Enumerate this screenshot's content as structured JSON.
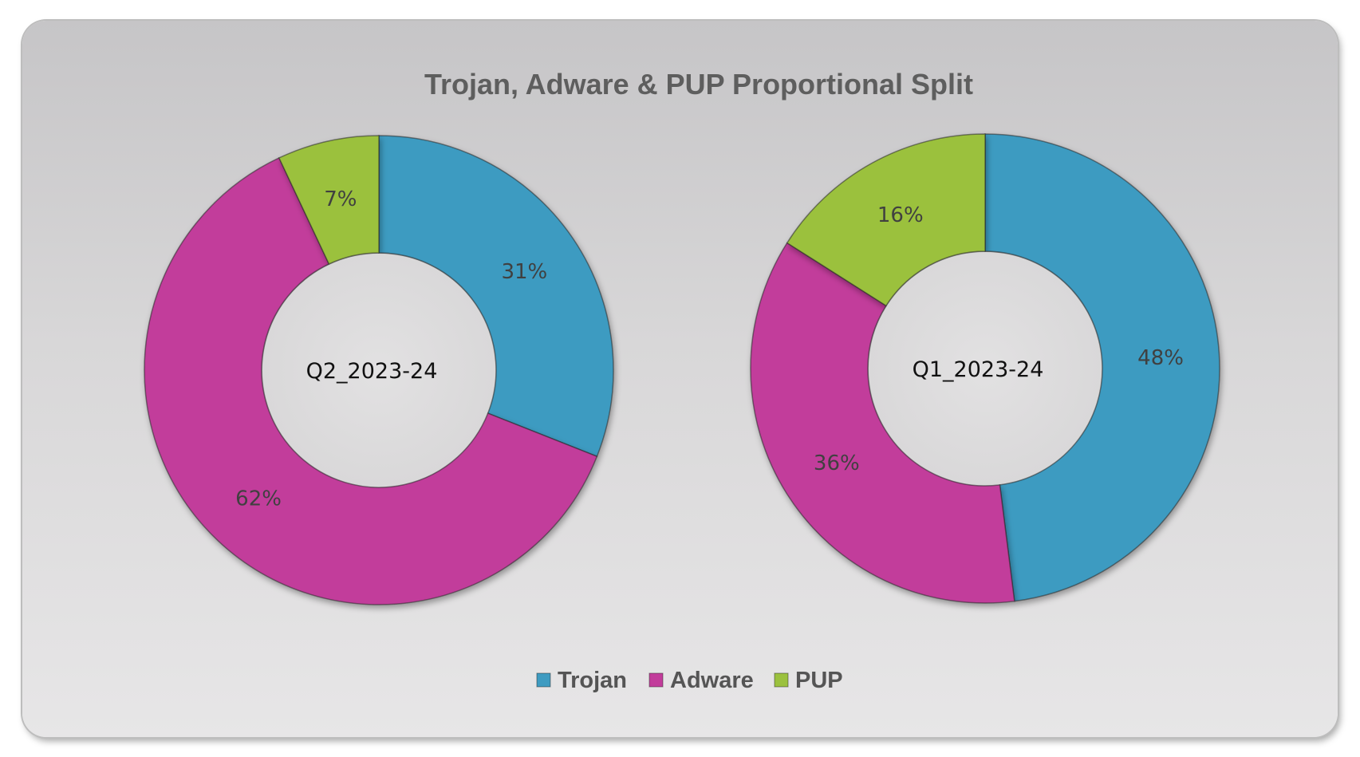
{
  "chart_data": {
    "type": "pie",
    "variant": "donut",
    "title": "Trojan, Adware & PUP Proportional Split",
    "categories": [
      "Trojan",
      "Adware",
      "PUP"
    ],
    "colors": [
      "#3e9bc1",
      "#c23c9b",
      "#9bc13e"
    ],
    "legend_position": "bottom",
    "charts": [
      {
        "name": "Q2_2023-24",
        "values": [
          31,
          62,
          7
        ],
        "labels": [
          "31%",
          "62%",
          "7%"
        ]
      },
      {
        "name": "Q1_2023-24",
        "values": [
          48,
          36,
          16
        ],
        "labels": [
          "48%",
          "36%",
          "16%"
        ]
      }
    ]
  }
}
